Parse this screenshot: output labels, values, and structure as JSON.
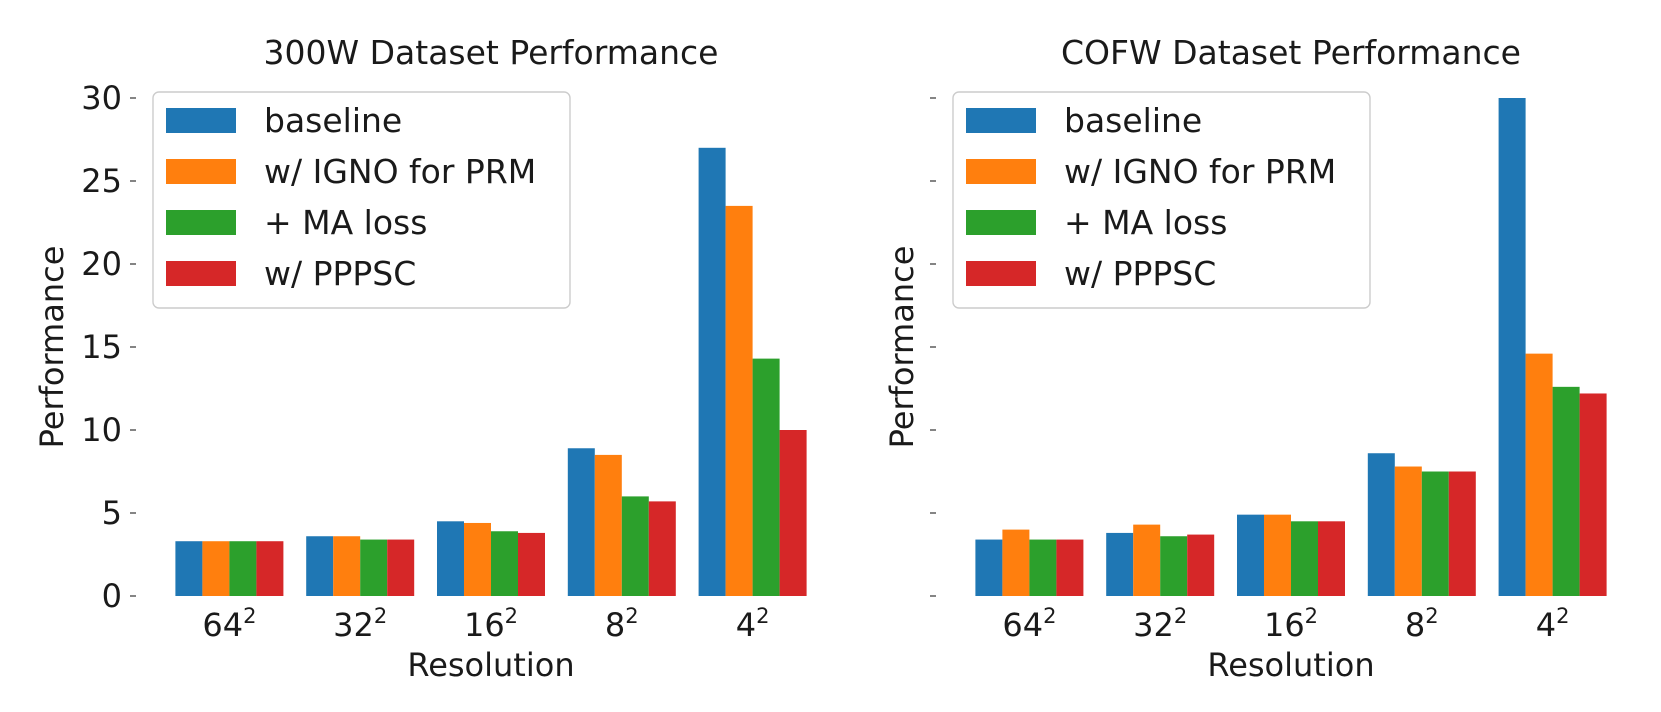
{
  "chart_data": [
    {
      "type": "bar",
      "title": "300W Dataset Performance",
      "xlabel": "Resolution",
      "ylabel": "Performance",
      "categories": [
        {
          "base": "64",
          "exp": "2"
        },
        {
          "base": "32",
          "exp": "2"
        },
        {
          "base": "16",
          "exp": "2"
        },
        {
          "base": "8",
          "exp": "2"
        },
        {
          "base": "4",
          "exp": "2"
        }
      ],
      "ylim": [
        0,
        30
      ],
      "yticks": [
        0,
        5,
        10,
        15,
        20,
        25,
        30
      ],
      "ytick_labels": [
        "0",
        "5",
        "10",
        "15",
        "20",
        "25",
        "30"
      ],
      "show_ytick_labels": true,
      "grid": false,
      "legend_position": "top-left",
      "series": [
        {
          "name": "baseline",
          "color": "#1f77b4",
          "values": [
            3.3,
            3.6,
            4.5,
            8.9,
            27.0
          ]
        },
        {
          "name": "w/ IGNO for PRM",
          "color": "#ff7f0e",
          "values": [
            3.3,
            3.6,
            4.4,
            8.5,
            23.5
          ]
        },
        {
          "name": "+ MA loss",
          "color": "#2ca02c",
          "values": [
            3.3,
            3.4,
            3.9,
            6.0,
            14.3
          ]
        },
        {
          "name": "w/ PPPSC",
          "color": "#d62728",
          "values": [
            3.3,
            3.4,
            3.8,
            5.7,
            10.0
          ]
        }
      ]
    },
    {
      "type": "bar",
      "title": "COFW Dataset Performance",
      "xlabel": "Resolution",
      "ylabel": "Performance",
      "categories": [
        {
          "base": "64",
          "exp": "2"
        },
        {
          "base": "32",
          "exp": "2"
        },
        {
          "base": "16",
          "exp": "2"
        },
        {
          "base": "8",
          "exp": "2"
        },
        {
          "base": "4",
          "exp": "2"
        }
      ],
      "ylim": [
        0,
        30
      ],
      "yticks": [
        0,
        5,
        10,
        15,
        20,
        25,
        30
      ],
      "ytick_labels": [],
      "show_ytick_labels": false,
      "grid": false,
      "legend_position": "top-left",
      "series": [
        {
          "name": "baseline",
          "color": "#1f77b4",
          "values": [
            3.4,
            3.8,
            4.9,
            8.6,
            30.0
          ]
        },
        {
          "name": "w/ IGNO for PRM",
          "color": "#ff7f0e",
          "values": [
            4.0,
            4.3,
            4.9,
            7.8,
            14.6
          ]
        },
        {
          "name": "+ MA loss",
          "color": "#2ca02c",
          "values": [
            3.4,
            3.6,
            4.5,
            7.5,
            12.6
          ]
        },
        {
          "name": "w/ PPPSC",
          "color": "#d62728",
          "values": [
            3.4,
            3.7,
            4.5,
            7.5,
            12.2
          ]
        }
      ]
    }
  ]
}
